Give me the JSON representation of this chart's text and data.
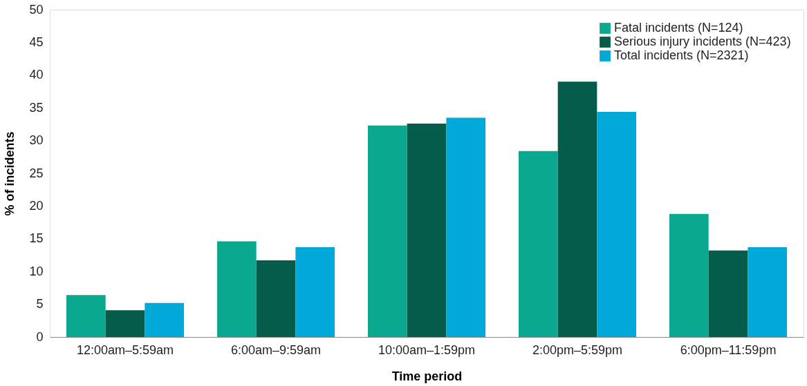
{
  "chart_data": {
    "type": "bar",
    "xlabel": "Time period",
    "ylabel": "% of incidents",
    "categories": [
      "12:00am–5:59am",
      "6:00am–9:59am",
      "10:00am–1:59pm",
      "2:00pm–5:59pm",
      "6:00pm–11:59pm"
    ],
    "series": [
      {
        "name": "Fatal incidents (N=124)",
        "color": "#0aa88e",
        "values": [
          6.4,
          14.6,
          32.3,
          28.4,
          18.8
        ]
      },
      {
        "name": "Serious injury incidents (N=423)",
        "color": "#045c4b",
        "values": [
          4.1,
          11.7,
          32.6,
          39.0,
          13.2
        ]
      },
      {
        "name": "Total incidents (N=2321)",
        "color": "#00a9d8",
        "values": [
          5.2,
          13.7,
          33.5,
          34.4,
          13.7
        ]
      }
    ],
    "ylim": [
      0,
      50
    ],
    "yticks": [
      0,
      5,
      10,
      15,
      20,
      25,
      30,
      35,
      40,
      45,
      50
    ],
    "grid": false,
    "legend": "top right"
  }
}
